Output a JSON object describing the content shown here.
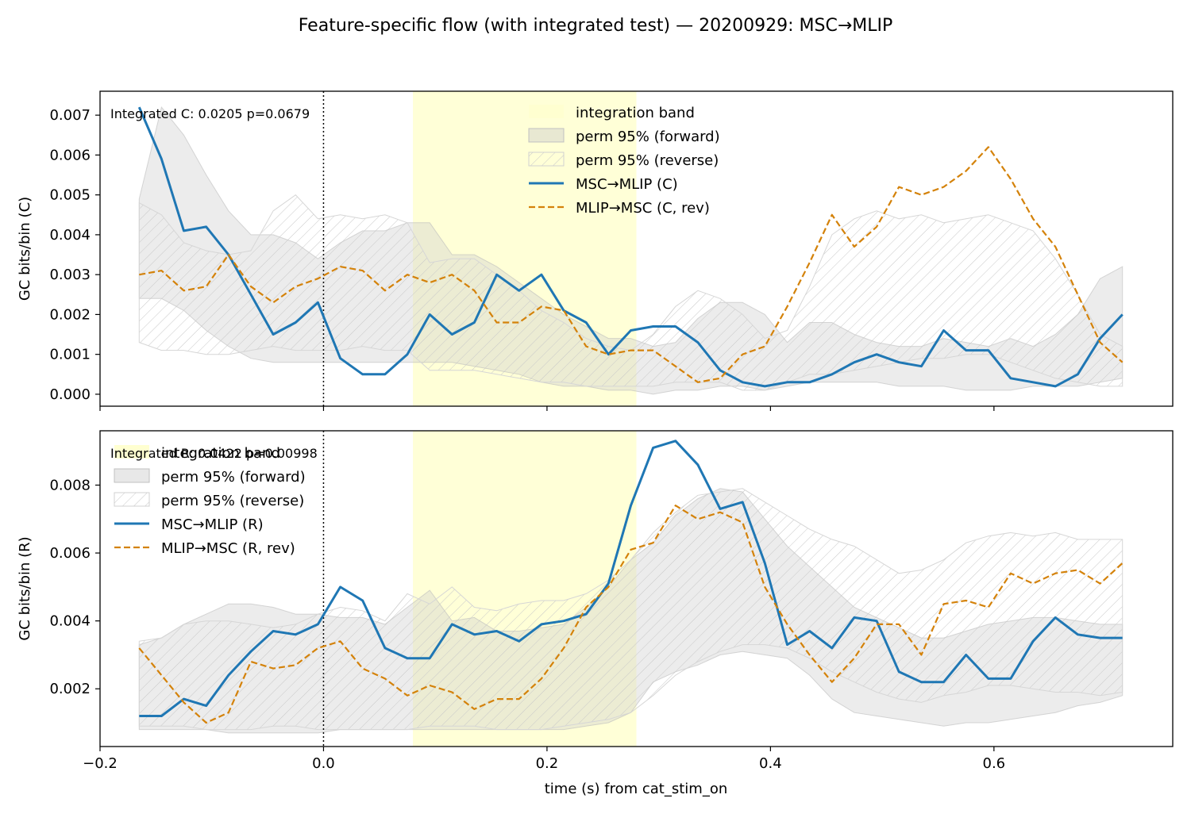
{
  "title": "Feature-specific flow (with integrated test) — 20200929: MSC→MLIP",
  "xlabel": "time (s) from cat_stim_on",
  "colors": {
    "forward": "#1f77b4",
    "reverse": "#d4820a",
    "band": "#ffffd0",
    "perm_fill": "#cccccc",
    "hatch": "#c8c8c8"
  },
  "chart_data": [
    {
      "type": "line",
      "ylabel": "GC bits/bin (C)",
      "annotation": "Integrated C: 0.0205  p=0.0679",
      "xlim": [
        -0.2,
        0.76
      ],
      "ylim": [
        -0.0003,
        0.0076
      ],
      "xticks": [
        -0.2,
        0.0,
        0.2,
        0.4,
        0.6
      ],
      "xtick_labels": [
        "−0.2",
        "0.0",
        "0.2",
        "0.4",
        "0.6"
      ],
      "yticks": [
        0.0,
        0.001,
        0.002,
        0.003,
        0.004,
        0.005,
        0.006,
        0.007
      ],
      "ytick_labels": [
        "0.000",
        "0.001",
        "0.002",
        "0.003",
        "0.004",
        "0.005",
        "0.006",
        "0.007"
      ],
      "show_xtick_labels": false,
      "band": [
        0.08,
        0.28
      ],
      "vline": 0.0,
      "legend": {
        "position": "upper center",
        "entries": [
          "integration band",
          "perm 95% (forward)",
          "perm 95% (reverse)",
          "MSC→MLIP (C)",
          "MLIP→MSC (C, rev)"
        ]
      },
      "x": [
        -0.165,
        -0.145,
        -0.125,
        -0.105,
        -0.085,
        -0.065,
        -0.045,
        -0.025,
        -0.005,
        0.015,
        0.035,
        0.055,
        0.075,
        0.095,
        0.115,
        0.135,
        0.155,
        0.175,
        0.195,
        0.215,
        0.235,
        0.255,
        0.275,
        0.295,
        0.315,
        0.335,
        0.355,
        0.375,
        0.395,
        0.415,
        0.435,
        0.455,
        0.475,
        0.495,
        0.515,
        0.535,
        0.555,
        0.575,
        0.595,
        0.615,
        0.635,
        0.655,
        0.675,
        0.695,
        0.715
      ],
      "series": [
        {
          "name": "MSC→MLIP (C)",
          "style": "solid",
          "values": [
            0.0072,
            0.0059,
            0.0041,
            0.0042,
            0.0035,
            0.0025,
            0.0015,
            0.0018,
            0.0023,
            0.0009,
            0.0005,
            0.0005,
            0.001,
            0.002,
            0.0015,
            0.0018,
            0.003,
            0.0026,
            0.003,
            0.0021,
            0.0018,
            0.001,
            0.0016,
            0.0017,
            0.0017,
            0.0013,
            0.0006,
            0.0003,
            0.0002,
            0.0003,
            0.0003,
            0.0005,
            0.0008,
            0.001,
            0.0008,
            0.0007,
            0.0016,
            0.0011,
            0.0011,
            0.0004,
            0.0003,
            0.0002,
            0.0005,
            0.0014,
            0.002
          ]
        },
        {
          "name": "MLIP→MSC (C, rev)",
          "style": "dashed",
          "values": [
            0.003,
            0.0031,
            0.0026,
            0.0027,
            0.0035,
            0.0027,
            0.0023,
            0.0027,
            0.0029,
            0.0032,
            0.0031,
            0.0026,
            0.003,
            0.0028,
            0.003,
            0.0026,
            0.0018,
            0.0018,
            0.0022,
            0.0021,
            0.0012,
            0.001,
            0.0011,
            0.0011,
            0.0007,
            0.0003,
            0.0004,
            0.001,
            0.0012,
            0.0022,
            0.0033,
            0.0045,
            0.0037,
            0.0042,
            0.0052,
            0.005,
            0.0052,
            0.0056,
            0.0062,
            0.0054,
            0.0044,
            0.0037,
            0.0025,
            0.0013,
            0.0008
          ]
        }
      ],
      "perm_forward": {
        "lower": [
          0.0024,
          0.0024,
          0.0021,
          0.0016,
          0.0012,
          0.0009,
          0.0008,
          0.0008,
          0.0008,
          0.0008,
          0.0008,
          0.0008,
          0.0008,
          0.0008,
          0.0008,
          0.0007,
          0.0006,
          0.0005,
          0.0003,
          0.0002,
          0.0002,
          0.0001,
          0.0001,
          0.0,
          0.0001,
          0.0001,
          0.0002,
          0.0002,
          0.0001,
          0.0002,
          0.0003,
          0.0003,
          0.0003,
          0.0003,
          0.0002,
          0.0002,
          0.0002,
          0.0001,
          0.0001,
          0.0001,
          0.0002,
          0.0002,
          0.0002,
          0.0003,
          0.0004
        ],
        "upper": [
          0.0049,
          0.0072,
          0.0065,
          0.0055,
          0.0046,
          0.004,
          0.004,
          0.0038,
          0.0034,
          0.0038,
          0.0041,
          0.0041,
          0.0043,
          0.0043,
          0.0035,
          0.0035,
          0.0032,
          0.0028,
          0.0024,
          0.002,
          0.0017,
          0.0014,
          0.0014,
          0.0012,
          0.0013,
          0.0019,
          0.0023,
          0.0023,
          0.002,
          0.0013,
          0.0018,
          0.0018,
          0.0015,
          0.0013,
          0.0012,
          0.0012,
          0.0014,
          0.0013,
          0.0012,
          0.0014,
          0.0012,
          0.0015,
          0.002,
          0.0029,
          0.0032
        ]
      },
      "perm_reverse": {
        "lower": [
          0.0013,
          0.0011,
          0.0011,
          0.001,
          0.001,
          0.0011,
          0.0012,
          0.0011,
          0.0011,
          0.0011,
          0.0012,
          0.0011,
          0.0011,
          0.0006,
          0.0006,
          0.0006,
          0.0005,
          0.0004,
          0.0003,
          0.0003,
          0.0002,
          0.0002,
          0.0002,
          0.0002,
          0.0003,
          0.0003,
          0.0003,
          0.0001,
          0.0001,
          0.0003,
          0.0005,
          0.0005,
          0.0006,
          0.0007,
          0.0008,
          0.0009,
          0.0009,
          0.001,
          0.001,
          0.0008,
          0.0006,
          0.0004,
          0.0003,
          0.0002,
          0.0002
        ],
        "upper": [
          0.0048,
          0.0045,
          0.0038,
          0.0036,
          0.0035,
          0.0036,
          0.0046,
          0.005,
          0.0044,
          0.0045,
          0.0044,
          0.0045,
          0.0043,
          0.0033,
          0.0034,
          0.0034,
          0.003,
          0.0026,
          0.0021,
          0.0018,
          0.0014,
          0.0012,
          0.0011,
          0.0015,
          0.0022,
          0.0026,
          0.0024,
          0.002,
          0.0014,
          0.0016,
          0.0027,
          0.004,
          0.0044,
          0.0046,
          0.0044,
          0.0045,
          0.0043,
          0.0044,
          0.0045,
          0.0043,
          0.0041,
          0.0034,
          0.0025,
          0.0015,
          0.0012
        ]
      }
    },
    {
      "type": "line",
      "ylabel": "GC bits/bin (R)",
      "annotation": "Integrated R: 0.0422  p=0.00998",
      "xlim": [
        -0.2,
        0.76
      ],
      "ylim": [
        0.0003,
        0.0096
      ],
      "xticks": [
        -0.2,
        0.0,
        0.2,
        0.4,
        0.6
      ],
      "xtick_labels": [
        "−0.2",
        "0.0",
        "0.2",
        "0.4",
        "0.6"
      ],
      "yticks": [
        0.002,
        0.004,
        0.006,
        0.008
      ],
      "ytick_labels": [
        "0.002",
        "0.004",
        "0.006",
        "0.008"
      ],
      "show_xtick_labels": true,
      "band": [
        0.08,
        0.28
      ],
      "vline": 0.0,
      "legend": {
        "position": "upper left",
        "entries": [
          "integration band",
          "perm 95% (forward)",
          "perm 95% (reverse)",
          "MSC→MLIP (R)",
          "MLIP→MSC (R, rev)"
        ]
      },
      "x": [
        -0.165,
        -0.145,
        -0.125,
        -0.105,
        -0.085,
        -0.065,
        -0.045,
        -0.025,
        -0.005,
        0.015,
        0.035,
        0.055,
        0.075,
        0.095,
        0.115,
        0.135,
        0.155,
        0.175,
        0.195,
        0.215,
        0.235,
        0.255,
        0.275,
        0.295,
        0.315,
        0.335,
        0.355,
        0.375,
        0.395,
        0.415,
        0.435,
        0.455,
        0.475,
        0.495,
        0.515,
        0.535,
        0.555,
        0.575,
        0.595,
        0.615,
        0.635,
        0.655,
        0.675,
        0.695,
        0.715
      ],
      "series": [
        {
          "name": "MSC→MLIP (R)",
          "style": "solid",
          "values": [
            0.0012,
            0.0012,
            0.0017,
            0.0015,
            0.0024,
            0.0031,
            0.0037,
            0.0036,
            0.0039,
            0.005,
            0.0046,
            0.0032,
            0.0029,
            0.0029,
            0.0039,
            0.0036,
            0.0037,
            0.0034,
            0.0039,
            0.004,
            0.0042,
            0.0051,
            0.0074,
            0.0091,
            0.0093,
            0.0086,
            0.0073,
            0.0075,
            0.0057,
            0.0033,
            0.0037,
            0.0032,
            0.0041,
            0.004,
            0.0025,
            0.0022,
            0.0022,
            0.003,
            0.0023,
            0.0023,
            0.0034,
            0.0041,
            0.0036,
            0.0035,
            0.0035
          ]
        },
        {
          "name": "MLIP→MSC (R, rev)",
          "style": "dashed",
          "values": [
            0.0032,
            0.0024,
            0.0016,
            0.001,
            0.0013,
            0.0028,
            0.0026,
            0.0027,
            0.0032,
            0.0034,
            0.0026,
            0.0023,
            0.0018,
            0.0021,
            0.0019,
            0.0014,
            0.0017,
            0.0017,
            0.0023,
            0.0032,
            0.0044,
            0.005,
            0.0061,
            0.0063,
            0.0074,
            0.007,
            0.0072,
            0.0069,
            0.005,
            0.0039,
            0.003,
            0.0022,
            0.0029,
            0.0039,
            0.0039,
            0.003,
            0.0045,
            0.0046,
            0.0044,
            0.0054,
            0.0051,
            0.0054,
            0.0055,
            0.0051,
            0.0057
          ]
        }
      ],
      "perm_forward": {
        "lower": [
          0.0008,
          0.0008,
          0.0008,
          0.0008,
          0.0007,
          0.0007,
          0.0007,
          0.0007,
          0.0007,
          0.0008,
          0.0008,
          0.0008,
          0.0008,
          0.0008,
          0.0008,
          0.0008,
          0.0008,
          0.0008,
          0.0008,
          0.0008,
          0.0009,
          0.001,
          0.0013,
          0.0022,
          0.0025,
          0.0027,
          0.003,
          0.0031,
          0.003,
          0.0029,
          0.0024,
          0.0017,
          0.0013,
          0.0012,
          0.0011,
          0.001,
          0.0009,
          0.001,
          0.001,
          0.0011,
          0.0012,
          0.0013,
          0.0015,
          0.0016,
          0.0018
        ],
        "upper": [
          0.0033,
          0.0035,
          0.0039,
          0.0042,
          0.0045,
          0.0045,
          0.0044,
          0.0042,
          0.0042,
          0.0041,
          0.0041,
          0.0039,
          0.0044,
          0.0049,
          0.004,
          0.0041,
          0.0037,
          0.0037,
          0.0038,
          0.0039,
          0.0044,
          0.005,
          0.0058,
          0.0063,
          0.0071,
          0.0076,
          0.0079,
          0.0078,
          0.007,
          0.0062,
          0.0056,
          0.005,
          0.0044,
          0.0041,
          0.0038,
          0.0035,
          0.0035,
          0.0037,
          0.0039,
          0.004,
          0.0041,
          0.0041,
          0.004,
          0.0039,
          0.0039
        ]
      },
      "perm_reverse": {
        "lower": [
          0.0009,
          0.0009,
          0.0009,
          0.0008,
          0.0008,
          0.0008,
          0.0009,
          0.0009,
          0.0008,
          0.0008,
          0.0008,
          0.0008,
          0.0008,
          0.0009,
          0.0009,
          0.0009,
          0.0008,
          0.0008,
          0.0008,
          0.0009,
          0.001,
          0.0011,
          0.0013,
          0.0018,
          0.0024,
          0.0028,
          0.0031,
          0.0033,
          0.0033,
          0.0032,
          0.0029,
          0.0025,
          0.0022,
          0.0019,
          0.0017,
          0.0016,
          0.0018,
          0.0019,
          0.0021,
          0.0021,
          0.002,
          0.0019,
          0.0019,
          0.0018,
          0.0019
        ],
        "upper": [
          0.0034,
          0.0035,
          0.0039,
          0.004,
          0.004,
          0.0039,
          0.0038,
          0.0039,
          0.0042,
          0.0044,
          0.0043,
          0.004,
          0.0048,
          0.0045,
          0.005,
          0.0044,
          0.0043,
          0.0045,
          0.0046,
          0.0046,
          0.0048,
          0.0052,
          0.0058,
          0.0066,
          0.0072,
          0.0077,
          0.0078,
          0.0079,
          0.0075,
          0.0071,
          0.0067,
          0.0064,
          0.0062,
          0.0058,
          0.0054,
          0.0055,
          0.0058,
          0.0063,
          0.0065,
          0.0066,
          0.0065,
          0.0066,
          0.0064,
          0.0064,
          0.0064
        ]
      }
    }
  ]
}
